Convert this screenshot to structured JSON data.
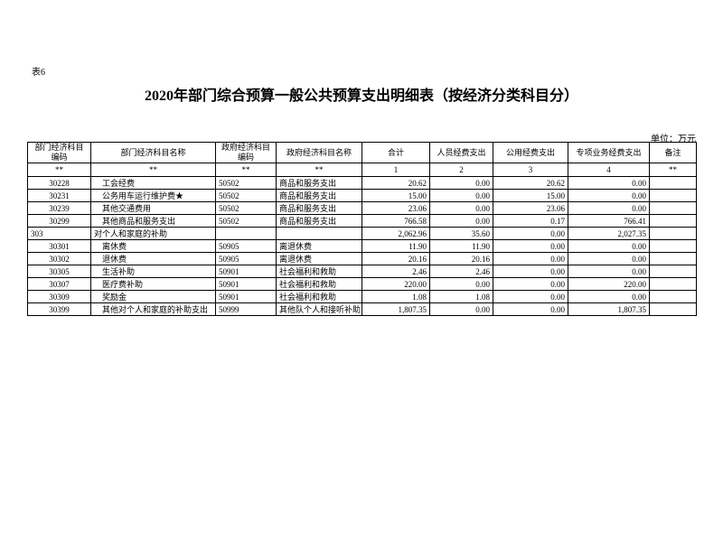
{
  "header": {
    "sheet_no": "表6",
    "title": "2020年部门综合预算一般公共预算支出明细表（按经济分类科目分）",
    "unit": "单位：万元"
  },
  "table": {
    "columns": [
      [
        "部门经济科目",
        "编码"
      ],
      [
        "部门经济科目名称"
      ],
      [
        "政府经济科目",
        "编码"
      ],
      [
        "政府经济科目名称"
      ],
      [
        "合计"
      ],
      [
        "人员经费支出"
      ],
      [
        "公用经费支出"
      ],
      [
        "专项业务经费支出"
      ],
      [
        "备注"
      ]
    ],
    "index_row": [
      "**",
      "**",
      "**",
      "**",
      "1",
      "2",
      "3",
      "4",
      "**"
    ],
    "rows": [
      {
        "code": "30228",
        "name": "工会经费",
        "gov_code": "50502",
        "gov_name": "商品和服务支出",
        "total": "20.62",
        "personnel": "0.00",
        "public": "20.62",
        "project": "0.00"
      },
      {
        "code": "30231",
        "name": "公务用车运行维护费★",
        "gov_code": "50502",
        "gov_name": "商品和服务支出",
        "total": "15.00",
        "personnel": "0.00",
        "public": "15.00",
        "project": "0.00"
      },
      {
        "code": "30239",
        "name": "其他交通费用",
        "gov_code": "50502",
        "gov_name": "商品和服务支出",
        "total": "23.06",
        "personnel": "0.00",
        "public": "23.06",
        "project": "0.00"
      },
      {
        "code": "30299",
        "name": "其他商品和服务支出",
        "gov_code": "50502",
        "gov_name": "商品和服务支出",
        "total": "766.58",
        "personnel": "0.00",
        "public": "0.17",
        "project": "766.41"
      },
      {
        "code": "303",
        "name": "对个人和家庭的补助",
        "total": "2,062.96",
        "personnel": "35.60",
        "public": "0.00",
        "project": "2,027.35"
      },
      {
        "code": "30301",
        "name": "离休费",
        "gov_code": "50905",
        "gov_name": "离退休费",
        "total": "11.90",
        "personnel": "11.90",
        "public": "0.00",
        "project": "0.00"
      },
      {
        "code": "30302",
        "name": "退休费",
        "gov_code": "50905",
        "gov_name": "离退休费",
        "total": "20.16",
        "personnel": "20.16",
        "public": "0.00",
        "project": "0.00"
      },
      {
        "code": "30305",
        "name": "生活补助",
        "gov_code": "50901",
        "gov_name": "社会福利和救助",
        "total": "2.46",
        "personnel": "2.46",
        "public": "0.00",
        "project": "0.00"
      },
      {
        "code": "30307",
        "name": "医疗费补助",
        "gov_code": "50901",
        "gov_name": "社会福利和救助",
        "total": "220.00",
        "personnel": "0.00",
        "public": "0.00",
        "project": "220.00"
      },
      {
        "code": "30309",
        "name": "奖励金",
        "gov_code": "50901",
        "gov_name": "社会福利和救助",
        "total": "1.08",
        "personnel": "1.08",
        "public": "0.00",
        "project": "0.00"
      },
      {
        "code": "30399",
        "name": "其他对个人和家庭的补助支出",
        "gov_code": "50999",
        "gov_name": "其他队个人和接听补助",
        "total": "1,807.35",
        "personnel": "0.00",
        "public": "0.00",
        "project": "1,807.35"
      }
    ]
  }
}
